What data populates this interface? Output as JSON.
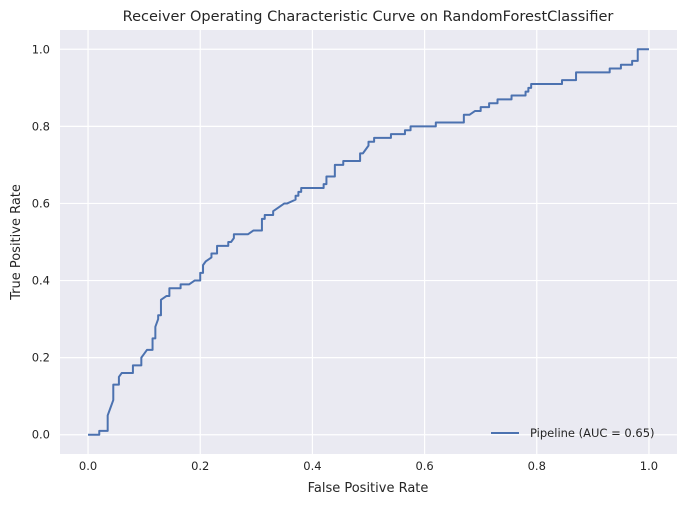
{
  "chart_data": {
    "type": "line",
    "title": "Receiver Operating Characteristic Curve on RandomForestClassifier",
    "xlabel": "False Positive Rate",
    "ylabel": "True Positive Rate",
    "xlim": [
      -0.05,
      1.05
    ],
    "ylim": [
      -0.05,
      1.05
    ],
    "xticks": [
      0.0,
      0.2,
      0.4,
      0.6,
      0.8,
      1.0
    ],
    "xtick_labels": [
      "0.0",
      "0.2",
      "0.4",
      "0.6",
      "0.8",
      "1.0"
    ],
    "yticks": [
      0.0,
      0.2,
      0.4,
      0.6,
      0.8,
      1.0
    ],
    "ytick_labels": [
      "0.0",
      "0.2",
      "0.4",
      "0.6",
      "0.8",
      "1.0"
    ],
    "grid": true,
    "legend_position": "bottom-right",
    "background_color": "#eaeaf2",
    "grid_color": "#ffffff",
    "series": [
      {
        "name": "Pipeline (AUC = 0.65)",
        "color": "#4c72b0",
        "x": [
          0.0,
          0.02,
          0.02,
          0.035,
          0.035,
          0.04,
          0.045,
          0.045,
          0.055,
          0.055,
          0.06,
          0.07,
          0.08,
          0.08,
          0.095,
          0.095,
          0.1,
          0.105,
          0.115,
          0.115,
          0.12,
          0.12,
          0.125,
          0.125,
          0.13,
          0.13,
          0.14,
          0.145,
          0.145,
          0.165,
          0.165,
          0.18,
          0.19,
          0.19,
          0.2,
          0.2,
          0.205,
          0.205,
          0.21,
          0.22,
          0.22,
          0.23,
          0.23,
          0.25,
          0.25,
          0.255,
          0.26,
          0.26,
          0.285,
          0.285,
          0.295,
          0.31,
          0.31,
          0.315,
          0.315,
          0.33,
          0.33,
          0.34,
          0.35,
          0.355,
          0.37,
          0.37,
          0.375,
          0.375,
          0.38,
          0.38,
          0.42,
          0.42,
          0.425,
          0.425,
          0.44,
          0.44,
          0.455,
          0.455,
          0.485,
          0.485,
          0.49,
          0.5,
          0.5,
          0.51,
          0.51,
          0.54,
          0.54,
          0.545,
          0.565,
          0.565,
          0.575,
          0.575,
          0.62,
          0.62,
          0.67,
          0.67,
          0.68,
          0.69,
          0.7,
          0.7,
          0.715,
          0.715,
          0.73,
          0.73,
          0.755,
          0.755,
          0.78,
          0.78,
          0.785,
          0.785,
          0.79,
          0.79,
          0.845,
          0.845,
          0.87,
          0.87,
          0.93,
          0.93,
          0.95,
          0.95,
          0.97,
          0.97,
          0.98,
          0.98,
          1.0
        ],
        "y": [
          0.0,
          0.0,
          0.01,
          0.01,
          0.05,
          0.07,
          0.09,
          0.13,
          0.13,
          0.15,
          0.16,
          0.16,
          0.16,
          0.18,
          0.18,
          0.2,
          0.21,
          0.22,
          0.22,
          0.25,
          0.25,
          0.28,
          0.3,
          0.31,
          0.31,
          0.35,
          0.36,
          0.36,
          0.38,
          0.38,
          0.39,
          0.39,
          0.4,
          0.4,
          0.4,
          0.42,
          0.42,
          0.44,
          0.45,
          0.46,
          0.47,
          0.47,
          0.49,
          0.49,
          0.5,
          0.5,
          0.51,
          0.52,
          0.52,
          0.52,
          0.53,
          0.53,
          0.56,
          0.56,
          0.57,
          0.57,
          0.58,
          0.59,
          0.6,
          0.6,
          0.61,
          0.62,
          0.62,
          0.63,
          0.63,
          0.64,
          0.64,
          0.65,
          0.65,
          0.67,
          0.67,
          0.7,
          0.7,
          0.71,
          0.71,
          0.73,
          0.73,
          0.75,
          0.76,
          0.76,
          0.77,
          0.77,
          0.78,
          0.78,
          0.78,
          0.79,
          0.79,
          0.8,
          0.8,
          0.81,
          0.81,
          0.83,
          0.83,
          0.84,
          0.84,
          0.85,
          0.85,
          0.86,
          0.86,
          0.87,
          0.87,
          0.88,
          0.88,
          0.89,
          0.89,
          0.9,
          0.9,
          0.91,
          0.91,
          0.92,
          0.92,
          0.94,
          0.94,
          0.95,
          0.95,
          0.96,
          0.96,
          0.97,
          0.97,
          1.0,
          1.0
        ]
      }
    ]
  }
}
